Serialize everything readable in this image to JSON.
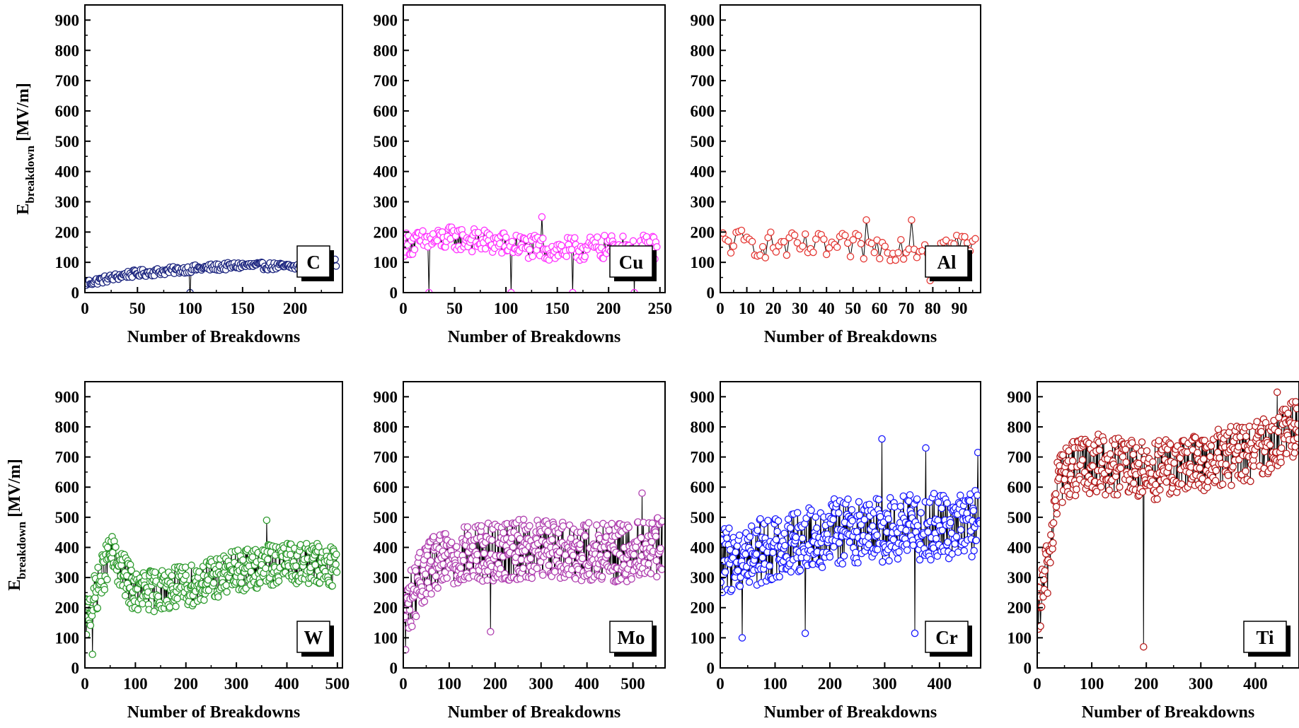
{
  "figure": {
    "y_axis_label_main": "E",
    "y_axis_label_sub": "breakdown",
    "y_axis_label_unit": " [MV/m]",
    "x_axis_label": "Number of Breakdowns"
  },
  "chart_data": [
    {
      "type": "scatter",
      "label": "C",
      "color": "#1a237e",
      "xlabel": "Number of Breakdowns",
      "ylabel": "Ebreakdown [MV/m]",
      "xlim": [
        0,
        245
      ],
      "ylim": [
        0,
        950
      ],
      "xticks": [
        0,
        50,
        100,
        150,
        200
      ],
      "yticks": [
        0,
        100,
        200,
        300,
        400,
        500,
        600,
        700,
        800,
        900
      ],
      "n": 240,
      "trend": [
        [
          0,
          30
        ],
        [
          40,
          60
        ],
        [
          100,
          78
        ],
        [
          150,
          90
        ],
        [
          200,
          85
        ],
        [
          240,
          100
        ]
      ],
      "noise": 12,
      "outliers": [
        [
          100,
          0
        ]
      ],
      "grid": false
    },
    {
      "type": "scatter",
      "label": "Cu",
      "color": "#ff33ff",
      "xlabel": "Number of Breakdowns",
      "ylabel": "Ebreakdown [MV/m]",
      "xlim": [
        0,
        255
      ],
      "ylim": [
        0,
        950
      ],
      "xticks": [
        0,
        50,
        100,
        150,
        200,
        250
      ],
      "yticks": [
        0,
        100,
        200,
        300,
        400,
        500,
        600,
        700,
        800,
        900
      ],
      "n": 248,
      "trend": [
        [
          0,
          160
        ],
        [
          50,
          180
        ],
        [
          100,
          160
        ],
        [
          150,
          140
        ],
        [
          200,
          150
        ],
        [
          248,
          150
        ]
      ],
      "noise": 40,
      "outliers": [
        [
          25,
          0
        ],
        [
          105,
          0
        ],
        [
          165,
          0
        ],
        [
          225,
          0
        ],
        [
          135,
          250
        ]
      ],
      "grid": false
    },
    {
      "type": "scatter",
      "label": "Al",
      "color": "#e53935",
      "xlabel": "Number of Breakdowns",
      "ylabel": "Ebreakdown [MV/m]",
      "xlim": [
        0,
        98
      ],
      "ylim": [
        0,
        950
      ],
      "xticks": [
        0,
        10,
        20,
        30,
        40,
        50,
        60,
        70,
        80,
        90
      ],
      "yticks": [
        0,
        100,
        200,
        300,
        400,
        500,
        600,
        700,
        800,
        900
      ],
      "n": 97,
      "trend": [
        [
          0,
          170
        ],
        [
          30,
          150
        ],
        [
          60,
          150
        ],
        [
          96,
          160
        ]
      ],
      "noise": 45,
      "outliers": [
        [
          79,
          40
        ],
        [
          55,
          240
        ],
        [
          72,
          240
        ]
      ],
      "grid": false
    },
    {
      "type": "scatter",
      "label": "W",
      "color": "#2e9b2e",
      "xlabel": "Number of Breakdowns",
      "ylabel": "Ebreakdown [MV/m]",
      "xlim": [
        0,
        510
      ],
      "ylim": [
        0,
        950
      ],
      "xticks": [
        0,
        100,
        200,
        300,
        400,
        500
      ],
      "yticks": [
        0,
        100,
        200,
        300,
        400,
        500,
        600,
        700,
        800,
        900
      ],
      "n": 500,
      "trend": [
        [
          0,
          150
        ],
        [
          50,
          380
        ],
        [
          100,
          250
        ],
        [
          200,
          270
        ],
        [
          300,
          320
        ],
        [
          400,
          350
        ],
        [
          500,
          340
        ]
      ],
      "noise": 70,
      "outliers": [
        [
          15,
          45
        ],
        [
          360,
          490
        ]
      ],
      "grid": false
    },
    {
      "type": "scatter",
      "label": "Mo",
      "color": "#b040b0",
      "xlabel": "Number of Breakdowns",
      "ylabel": "Ebreakdown [MV/m]",
      "xlim": [
        0,
        570
      ],
      "ylim": [
        0,
        950
      ],
      "xticks": [
        0,
        100,
        200,
        300,
        400,
        500
      ],
      "yticks": [
        0,
        100,
        200,
        300,
        400,
        500,
        600,
        700,
        800,
        900
      ],
      "n": 565,
      "trend": [
        [
          0,
          180
        ],
        [
          50,
          330
        ],
        [
          150,
          380
        ],
        [
          300,
          400
        ],
        [
          450,
          380
        ],
        [
          565,
          400
        ]
      ],
      "noise": 100,
      "outliers": [
        [
          5,
          60
        ],
        [
          190,
          120
        ],
        [
          520,
          580
        ]
      ],
      "grid": false
    },
    {
      "type": "scatter",
      "label": "Cr",
      "color": "#1a1aff",
      "xlabel": "Number of Breakdowns",
      "ylabel": "Ebreakdown [MV/m]",
      "xlim": [
        0,
        475
      ],
      "ylim": [
        0,
        950
      ],
      "xticks": [
        0,
        100,
        200,
        300,
        400
      ],
      "yticks": [
        0,
        100,
        200,
        300,
        400,
        500,
        600,
        700,
        800,
        900
      ],
      "n": 475,
      "trend": [
        [
          0,
          350
        ],
        [
          100,
          400
        ],
        [
          200,
          450
        ],
        [
          300,
          460
        ],
        [
          400,
          470
        ],
        [
          475,
          480
        ]
      ],
      "noise": 110,
      "outliers": [
        [
          40,
          100
        ],
        [
          155,
          115
        ],
        [
          355,
          115
        ],
        [
          295,
          760
        ],
        [
          375,
          730
        ],
        [
          470,
          715
        ]
      ],
      "grid": false
    },
    {
      "type": "scatter",
      "label": "Ti",
      "color": "#b71c1c",
      "xlabel": "Number of Breakdowns",
      "ylabel": "Ebreakdown [MV/m]",
      "xlim": [
        0,
        480
      ],
      "ylim": [
        0,
        950
      ],
      "xticks": [
        0,
        100,
        200,
        300,
        400
      ],
      "yticks": [
        0,
        100,
        200,
        300,
        400,
        500,
        600,
        700,
        800,
        900
      ],
      "n": 480,
      "trend": [
        [
          0,
          160
        ],
        [
          20,
          350
        ],
        [
          40,
          640
        ],
        [
          100,
          680
        ],
        [
          200,
          650
        ],
        [
          300,
          680
        ],
        [
          400,
          720
        ],
        [
          480,
          800
        ]
      ],
      "noise": 100,
      "outliers": [
        [
          195,
          70
        ],
        [
          440,
          915
        ]
      ],
      "grid": false
    }
  ]
}
